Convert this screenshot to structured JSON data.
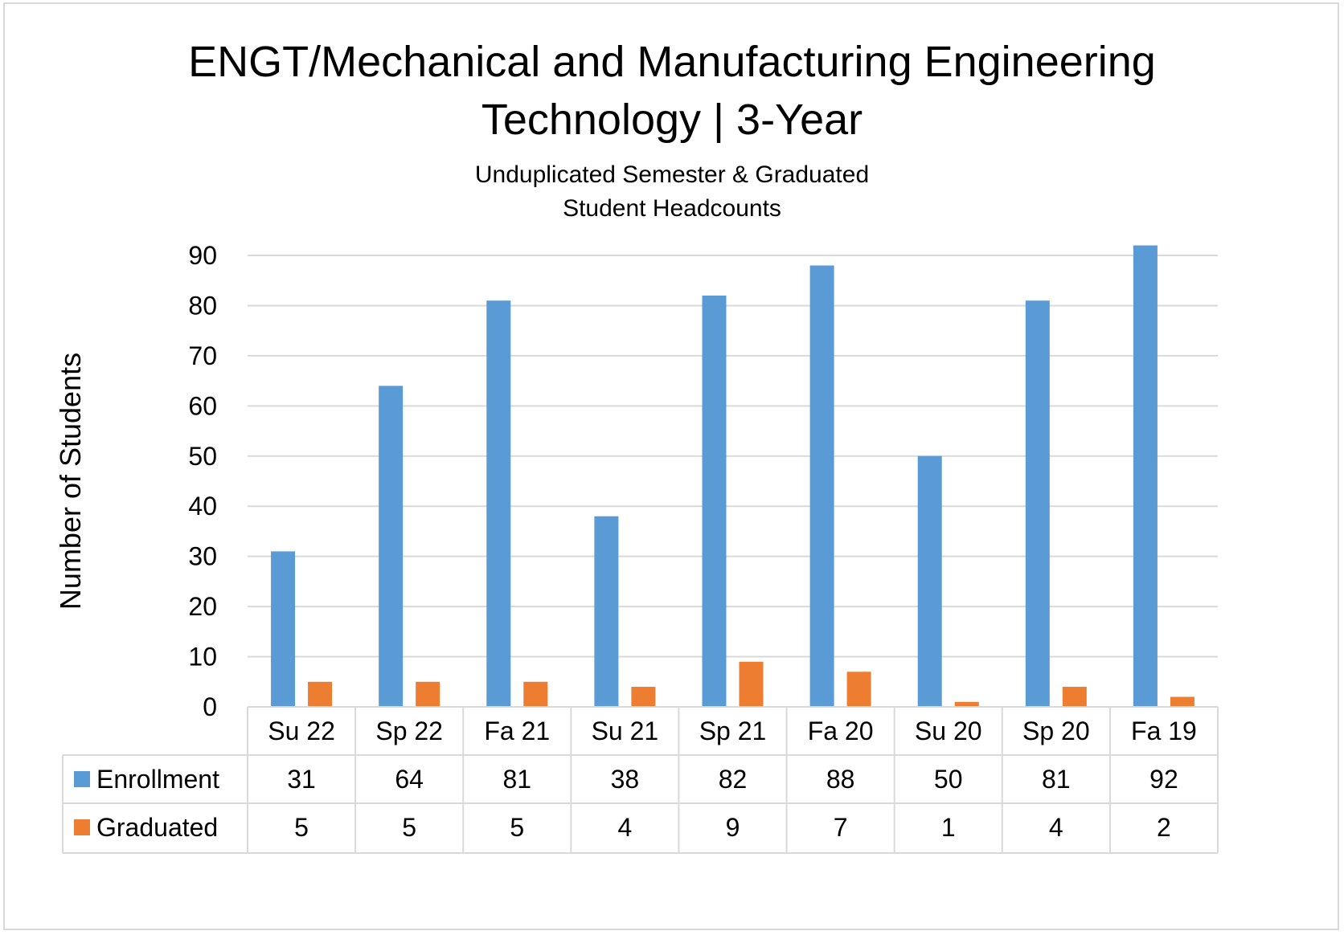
{
  "chart_data": {
    "type": "bar",
    "title": "ENGT/Mechanical and Manufacturing Engineering Technology | 3-Year",
    "title_lines": [
      "ENGT/Mechanical and Manufacturing Engineering",
      "Technology | 3-Year"
    ],
    "subtitle": "Unduplicated Semester & Graduated Student Headcounts",
    "subtitle_lines": [
      "Unduplicated Semester & Graduated",
      "Student Headcounts"
    ],
    "xlabel": "",
    "ylabel": "Number of Students",
    "ylim": [
      0,
      90
    ],
    "yticks": [
      0,
      10,
      20,
      30,
      40,
      50,
      60,
      70,
      80,
      90
    ],
    "grid": true,
    "legend": "data-table",
    "categories": [
      "Su 22",
      "Sp 22",
      "Fa 21",
      "Su 21",
      "Sp 21",
      "Fa 20",
      "Su 20",
      "Sp 20",
      "Fa 19"
    ],
    "series": [
      {
        "name": "Enrollment",
        "color": "#5b9bd5",
        "values": [
          31,
          64,
          81,
          38,
          82,
          88,
          50,
          81,
          92
        ]
      },
      {
        "name": "Graduated",
        "color": "#ed7d31",
        "values": [
          5,
          5,
          5,
          4,
          9,
          7,
          1,
          4,
          2
        ]
      }
    ]
  }
}
